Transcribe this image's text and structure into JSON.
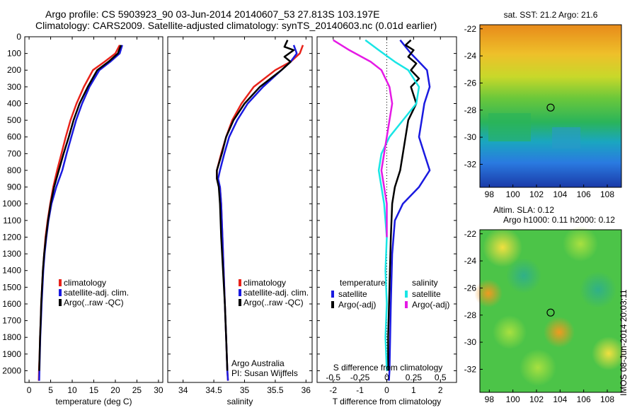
{
  "header": {
    "line1": "Argo profile: CS 5903923_90 03-Jun-2014 20140607_53 27.813S 103.197E",
    "line2": "Climatology: CARS2009. Satellite-adjusted climatology: synTS_20140603.nc (0.01d earlier)"
  },
  "stamp": "IMOS 08-Jun-2014 20:03:11",
  "colors": {
    "climatology": "#e8231a",
    "satellite": "#1a1ae0",
    "argo": "#000000",
    "cyan": "#19e5e5",
    "magenta": "#e51ae5"
  },
  "chart_data": [
    {
      "type": "line",
      "id": "temperature",
      "xlabel": "temperature (deg C)",
      "ylabel": "",
      "xlim": [
        -1,
        31
      ],
      "ylim": [
        2070,
        0
      ],
      "xticks": [
        0,
        5,
        10,
        15,
        20,
        25,
        30
      ],
      "yticks": [
        0,
        100,
        200,
        300,
        400,
        500,
        600,
        700,
        800,
        900,
        1000,
        1100,
        1200,
        1300,
        1400,
        1500,
        1600,
        1700,
        1800,
        1900,
        2000
      ],
      "legend": [
        "climatology",
        "satellite-adj. clim.",
        "Argo(..raw -QC)"
      ],
      "series": [
        {
          "name": "climatology",
          "color": "red",
          "points": [
            [
              21.0,
              50
            ],
            [
              20.0,
              100
            ],
            [
              17.5,
              150
            ],
            [
              14.8,
              200
            ],
            [
              12.7,
              300
            ],
            [
              11.0,
              400
            ],
            [
              9.6,
              500
            ],
            [
              8.5,
              600
            ],
            [
              7.5,
              700
            ],
            [
              6.5,
              800
            ],
            [
              5.6,
              900
            ],
            [
              4.9,
              1000
            ],
            [
              4.3,
              1100
            ],
            [
              3.8,
              1200
            ],
            [
              3.5,
              1300
            ],
            [
              3.2,
              1400
            ],
            [
              3.0,
              1500
            ],
            [
              2.8,
              1600
            ],
            [
              2.7,
              1700
            ],
            [
              2.55,
              1800
            ],
            [
              2.45,
              1900
            ],
            [
              2.3,
              2000
            ],
            [
              2.25,
              2060
            ]
          ]
        },
        {
          "name": "satellite-adj. clim.",
          "color": "blue",
          "points": [
            [
              21.6,
              50
            ],
            [
              21.0,
              100
            ],
            [
              18.8,
              150
            ],
            [
              16.3,
              200
            ],
            [
              14.0,
              300
            ],
            [
              12.3,
              400
            ],
            [
              10.9,
              500
            ],
            [
              9.8,
              600
            ],
            [
              8.7,
              700
            ],
            [
              7.7,
              800
            ],
            [
              6.3,
              900
            ],
            [
              5.2,
              1000
            ],
            [
              4.5,
              1100
            ],
            [
              4.0,
              1200
            ],
            [
              3.6,
              1300
            ],
            [
              3.3,
              1400
            ],
            [
              3.1,
              1500
            ],
            [
              2.9,
              1600
            ],
            [
              2.75,
              1700
            ],
            [
              2.6,
              1800
            ],
            [
              2.5,
              1900
            ],
            [
              2.4,
              2000
            ],
            [
              2.35,
              2060
            ]
          ]
        },
        {
          "name": "Argo(..raw -QC)",
          "color": "black",
          "points": [
            [
              21.3,
              50
            ],
            [
              20.6,
              100
            ],
            [
              18.4,
              150
            ],
            [
              15.8,
              200
            ],
            [
              13.6,
              300
            ],
            [
              11.7,
              400
            ],
            [
              10.3,
              500
            ],
            [
              9.2,
              600
            ],
            [
              8.0,
              700
            ],
            [
              6.9,
              800
            ],
            [
              5.8,
              900
            ],
            [
              5.0,
              1000
            ],
            [
              4.4,
              1100
            ],
            [
              3.9,
              1200
            ],
            [
              3.5,
              1300
            ],
            [
              3.2,
              1400
            ],
            [
              3.0,
              1500
            ],
            [
              2.8,
              1600
            ],
            [
              2.7,
              1700
            ],
            [
              2.55,
              1800
            ],
            [
              2.45,
              1900
            ],
            [
              2.35,
              2000
            ]
          ]
        }
      ]
    },
    {
      "type": "line",
      "id": "salinity",
      "xlabel": "salinity",
      "ylabel": "",
      "xlim": [
        33.75,
        36.1
      ],
      "ylim": [
        2070,
        0
      ],
      "xticks": [
        34,
        34.5,
        35,
        35.5,
        36
      ],
      "legend": [
        "climatology",
        "satellite-adj. clim.",
        "Argo(..raw -QC)"
      ],
      "notes": [
        "Argo Australia",
        "PI: Susan Wijffels"
      ],
      "series": [
        {
          "name": "climatology",
          "color": "red",
          "points": [
            [
              35.95,
              50
            ],
            [
              35.9,
              100
            ],
            [
              35.75,
              150
            ],
            [
              35.5,
              200
            ],
            [
              35.15,
              300
            ],
            [
              34.95,
              400
            ],
            [
              34.8,
              500
            ],
            [
              34.7,
              600
            ],
            [
              34.62,
              700
            ],
            [
              34.55,
              800
            ],
            [
              34.55,
              850
            ],
            [
              34.6,
              900
            ],
            [
              34.62,
              1000
            ],
            [
              34.64,
              1200
            ],
            [
              34.66,
              1400
            ],
            [
              34.68,
              1600
            ],
            [
              34.7,
              1800
            ],
            [
              34.72,
              2000
            ],
            [
              34.73,
              2060
            ]
          ]
        },
        {
          "name": "satellite-adj. clim.",
          "color": "blue",
          "points": [
            [
              35.8,
              50
            ],
            [
              35.85,
              100
            ],
            [
              35.75,
              150
            ],
            [
              35.6,
              200
            ],
            [
              35.3,
              300
            ],
            [
              35.05,
              400
            ],
            [
              34.88,
              500
            ],
            [
              34.75,
              600
            ],
            [
              34.67,
              700
            ],
            [
              34.6,
              800
            ],
            [
              34.57,
              850
            ],
            [
              34.6,
              900
            ],
            [
              34.62,
              1000
            ],
            [
              34.64,
              1200
            ],
            [
              34.66,
              1400
            ],
            [
              34.68,
              1600
            ],
            [
              34.7,
              1800
            ],
            [
              34.72,
              2000
            ],
            [
              34.73,
              2060
            ]
          ]
        },
        {
          "name": "Argo(..raw -QC)",
          "color": "black",
          "points": [
            [
              35.7,
              20
            ],
            [
              35.65,
              60
            ],
            [
              35.8,
              80
            ],
            [
              35.65,
              120
            ],
            [
              35.75,
              150
            ],
            [
              35.6,
              200
            ],
            [
              35.25,
              300
            ],
            [
              35.0,
              400
            ],
            [
              34.82,
              500
            ],
            [
              34.7,
              600
            ],
            [
              34.63,
              700
            ],
            [
              34.55,
              800
            ],
            [
              34.55,
              850
            ],
            [
              34.58,
              900
            ],
            [
              34.6,
              1000
            ],
            [
              34.62,
              1200
            ],
            [
              34.65,
              1400
            ],
            [
              34.68,
              1600
            ],
            [
              34.7,
              1800
            ],
            [
              34.72,
              2000
            ]
          ]
        }
      ]
    },
    {
      "type": "line",
      "id": "difference",
      "xlabel": "T difference from climatology",
      "xlabel_top": "S difference from climatology",
      "xlim": [
        -2.6,
        2.6
      ],
      "ylim": [
        2070,
        0
      ],
      "xticks": [
        -2,
        -1,
        0,
        1,
        2
      ],
      "xticks_top": [
        -0.5,
        -0.25,
        0,
        0.25,
        0.5
      ],
      "legend_left_title": "temperature",
      "legend_right_title": "salinity",
      "legend": [
        "satellite",
        "Argo(-adj)",
        "satellite",
        "Argo(-adj)"
      ],
      "series": [
        {
          "name": "T satellite",
          "color": "blue",
          "points": [
            [
              0.5,
              20
            ],
            [
              0.7,
              60
            ],
            [
              0.9,
              100
            ],
            [
              1.2,
              150
            ],
            [
              1.5,
              200
            ],
            [
              1.6,
              300
            ],
            [
              1.4,
              400
            ],
            [
              1.3,
              500
            ],
            [
              1.2,
              600
            ],
            [
              1.4,
              700
            ],
            [
              1.6,
              800
            ],
            [
              1.2,
              900
            ],
            [
              0.6,
              1000
            ],
            [
              0.3,
              1100
            ],
            [
              0.2,
              1300
            ],
            [
              0.15,
              1600
            ],
            [
              0.1,
              2000
            ],
            [
              0.08,
              2060
            ]
          ]
        },
        {
          "name": "T Argo(-adj)",
          "color": "black",
          "points": [
            [
              0.9,
              20
            ],
            [
              0.7,
              50
            ],
            [
              1.0,
              80
            ],
            [
              0.8,
              120
            ],
            [
              1.1,
              160
            ],
            [
              0.9,
              200
            ],
            [
              1.2,
              250
            ],
            [
              0.9,
              300
            ],
            [
              1.1,
              400
            ],
            [
              0.8,
              500
            ],
            [
              0.7,
              600
            ],
            [
              0.6,
              700
            ],
            [
              0.5,
              800
            ],
            [
              0.3,
              900
            ],
            [
              0.2,
              1000
            ],
            [
              0.15,
              1200
            ],
            [
              0.1,
              1500
            ],
            [
              0.05,
              1800
            ],
            [
              0.05,
              2000
            ]
          ]
        },
        {
          "name": "S satellite",
          "color": "cyan",
          "points": [
            [
              -0.8,
              20
            ],
            [
              -0.3,
              80
            ],
            [
              0.3,
              150
            ],
            [
              0.8,
              200
            ],
            [
              1.2,
              300
            ],
            [
              1.1,
              400
            ],
            [
              0.6,
              500
            ],
            [
              0.1,
              600
            ],
            [
              -0.2,
              700
            ],
            [
              -0.3,
              800
            ],
            [
              -0.2,
              900
            ],
            [
              -0.1,
              1000
            ],
            [
              0,
              1200
            ],
            [
              -0.05,
              1400
            ],
            [
              0,
              1600
            ],
            [
              -0.05,
              1800
            ],
            [
              0,
              2000
            ]
          ]
        },
        {
          "name": "S Argo(-adj)",
          "color": "magenta",
          "points": [
            [
              -2.0,
              20
            ],
            [
              -1.4,
              80
            ],
            [
              -0.6,
              150
            ],
            [
              -0.2,
              200
            ],
            [
              0.1,
              300
            ],
            [
              0.2,
              400
            ],
            [
              0.1,
              500
            ],
            [
              0,
              600
            ],
            [
              -0.1,
              700
            ],
            [
              -0.2,
              800
            ],
            [
              -0.1,
              900
            ],
            [
              0,
              1000
            ],
            [
              0,
              1200
            ]
          ]
        }
      ]
    },
    {
      "type": "heatmap",
      "id": "sst-map",
      "title": "sat. SST: 21.2 Argo: 21.6",
      "xlim": [
        97.2,
        109.2
      ],
      "ylim": [
        -33.7,
        -21.7
      ],
      "xticks": [
        98,
        100,
        102,
        104,
        106,
        108
      ],
      "yticks": [
        -22,
        -24,
        -26,
        -28,
        -30,
        -32
      ],
      "marker": [
        103.197,
        -27.813
      ]
    },
    {
      "type": "heatmap",
      "id": "sla-map",
      "title": "Altim. SLA: 0.12",
      "subtitle": "Argo h1000: 0.11 h2000: 0.12",
      "xlim": [
        97.2,
        109.2
      ],
      "ylim": [
        -33.7,
        -21.7
      ],
      "xticks": [
        98,
        100,
        102,
        104,
        106,
        108
      ],
      "yticks": [
        -22,
        -24,
        -26,
        -28,
        -30,
        -32
      ],
      "marker": [
        103.197,
        -27.813
      ]
    }
  ]
}
